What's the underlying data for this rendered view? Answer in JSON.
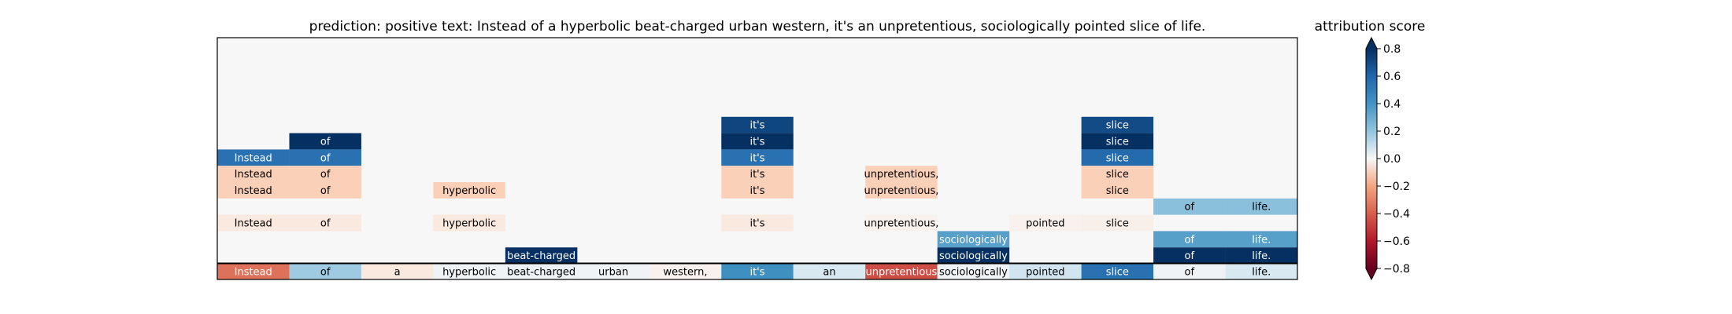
{
  "chart_data": {
    "type": "heatmap",
    "title": "prediction:  positive     text:  Instead of a hyperbolic beat-charged urban western, it's an unpretentious, sociologically pointed slice of life.",
    "colorbar_label": "attribution score",
    "colorbar_ticks": [
      "0.8",
      "0.6",
      "0.4",
      "0.2",
      "0.0",
      "−0.2",
      "−0.4",
      "−0.6",
      "−0.8"
    ],
    "colorbar_tick_values": [
      0.8,
      0.6,
      0.4,
      0.2,
      0.0,
      -0.2,
      -0.4,
      -0.6,
      -0.8
    ],
    "value_range": [
      -0.8,
      0.8
    ],
    "colormap": "RdBu",
    "background_color": "#f6f7f6",
    "tokens": [
      "Instead",
      "of",
      "a",
      "hyperbolic",
      "beat-charged",
      "urban",
      "western,",
      "it's",
      "an",
      "unpretentious,",
      "sociologically",
      "pointed",
      "slice",
      "of",
      "life."
    ],
    "base_row": {
      "labels": [
        "Instead",
        "of",
        "a",
        "hyperbolic",
        "beat-charged",
        "urban",
        "western,",
        "it's",
        "an",
        "unpretentious",
        "sociologically",
        "pointed",
        "slice",
        "of",
        "life."
      ],
      "values": [
        -0.35,
        0.18,
        -0.05,
        0.02,
        0.03,
        0.02,
        -0.02,
        0.42,
        0.08,
        -0.45,
        0.02,
        0.1,
        0.55,
        0.02,
        0.08
      ]
    },
    "rows": [
      [
        null,
        null,
        null,
        null,
        null,
        null,
        null,
        0.72,
        null,
        null,
        null,
        null,
        0.7,
        null,
        null
      ],
      [
        null,
        0.85,
        null,
        null,
        null,
        null,
        null,
        0.88,
        null,
        null,
        null,
        null,
        0.85,
        null,
        null
      ],
      [
        0.55,
        0.55,
        null,
        null,
        null,
        null,
        null,
        0.55,
        null,
        null,
        null,
        null,
        0.58,
        null,
        null
      ],
      [
        -0.12,
        -0.12,
        null,
        null,
        null,
        null,
        null,
        -0.12,
        null,
        -0.12,
        null,
        null,
        -0.12,
        null,
        null
      ],
      [
        -0.12,
        -0.12,
        null,
        -0.12,
        null,
        null,
        null,
        -0.12,
        null,
        -0.12,
        null,
        null,
        -0.12,
        null,
        null
      ],
      [
        null,
        null,
        null,
        null,
        null,
        null,
        null,
        null,
        null,
        null,
        null,
        null,
        null,
        0.22,
        0.22
      ],
      [
        -0.05,
        -0.05,
        null,
        -0.05,
        null,
        null,
        null,
        -0.05,
        null,
        -0.02,
        null,
        -0.02,
        -0.03,
        null,
        null
      ],
      [
        null,
        null,
        null,
        null,
        null,
        null,
        null,
        null,
        null,
        null,
        0.35,
        null,
        null,
        0.35,
        0.35
      ],
      [
        null,
        null,
        null,
        null,
        0.85,
        null,
        null,
        null,
        null,
        null,
        0.85,
        null,
        null,
        0.82,
        0.82
      ]
    ]
  }
}
